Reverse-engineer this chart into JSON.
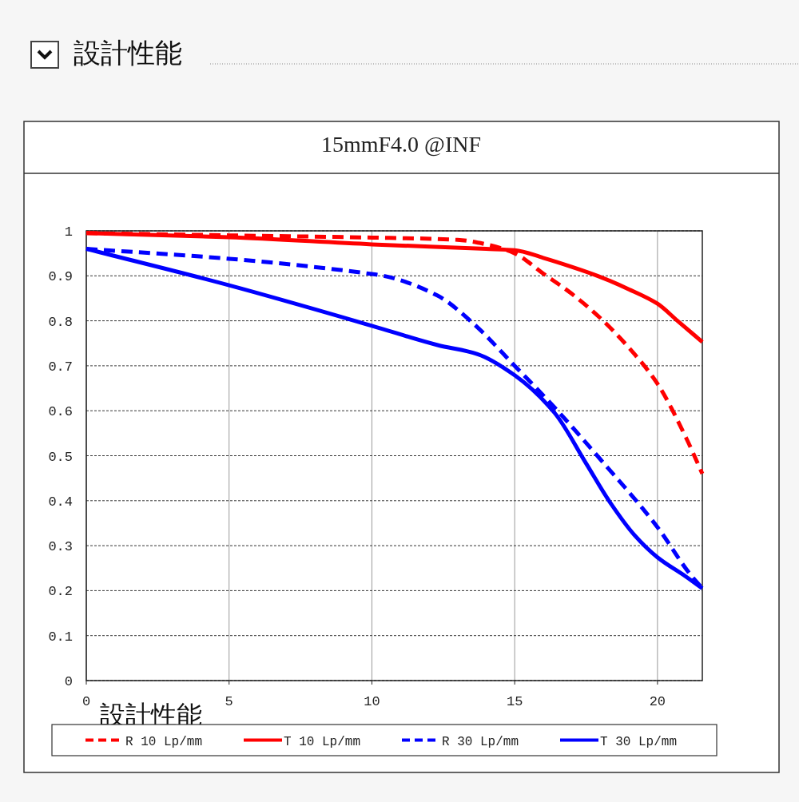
{
  "chart_data": {
    "type": "line",
    "title": "15mmF4.0  @INF",
    "annotations": [
      "設計性能",
      "設計性能"
    ],
    "xlim": [
      0,
      21.57
    ],
    "ylim": [
      0,
      1
    ],
    "xticks": [
      0,
      5,
      10,
      15,
      20
    ],
    "yticks": [
      0,
      0.1,
      0.2,
      0.3,
      0.4,
      0.5,
      0.6,
      0.7,
      0.8,
      0.9,
      1
    ],
    "grid": true,
    "legend": "bottom",
    "marker": "none",
    "series": [
      {
        "name": "R 10 Lp/mm",
        "color": "#ff0000",
        "line_style": "dashed",
        "x": [
          0,
          5,
          10,
          13,
          14,
          15,
          16,
          17,
          18,
          19,
          20,
          21,
          21.57
        ],
        "values": [
          0.995,
          0.99,
          0.985,
          0.98,
          0.97,
          0.95,
          0.905,
          0.86,
          0.806,
          0.74,
          0.66,
          0.54,
          0.46
        ]
      },
      {
        "name": "T 10 Lp/mm",
        "color": "#ff0000",
        "line_style": "solid",
        "x": [
          0,
          5,
          10,
          14,
          15,
          16,
          17,
          17.9,
          19,
          20,
          20.7,
          21.57
        ],
        "values": [
          0.995,
          0.986,
          0.97,
          0.96,
          0.957,
          0.94,
          0.92,
          0.9,
          0.87,
          0.838,
          0.8,
          0.753
        ]
      },
      {
        "name": "R 30 Lp/mm",
        "color": "#0000ff",
        "line_style": "dashed",
        "x": [
          0,
          5,
          10,
          10.4,
          12.3,
          13.5,
          15,
          16.4,
          18,
          20,
          21.1,
          21.57
        ],
        "values": [
          0.96,
          0.938,
          0.904,
          0.9,
          0.856,
          0.797,
          0.7,
          0.607,
          0.492,
          0.341,
          0.24,
          0.205
        ]
      },
      {
        "name": "T 30 Lp/mm",
        "color": "#0000ff",
        "line_style": "solid",
        "x": [
          0,
          5,
          10,
          12.3,
          13.7,
          15,
          16.4,
          17.5,
          18.3,
          19.2,
          20,
          21,
          21.57
        ],
        "values": [
          0.96,
          0.879,
          0.789,
          0.746,
          0.726,
          0.679,
          0.595,
          0.483,
          0.4,
          0.323,
          0.274,
          0.231,
          0.205
        ]
      }
    ]
  }
}
